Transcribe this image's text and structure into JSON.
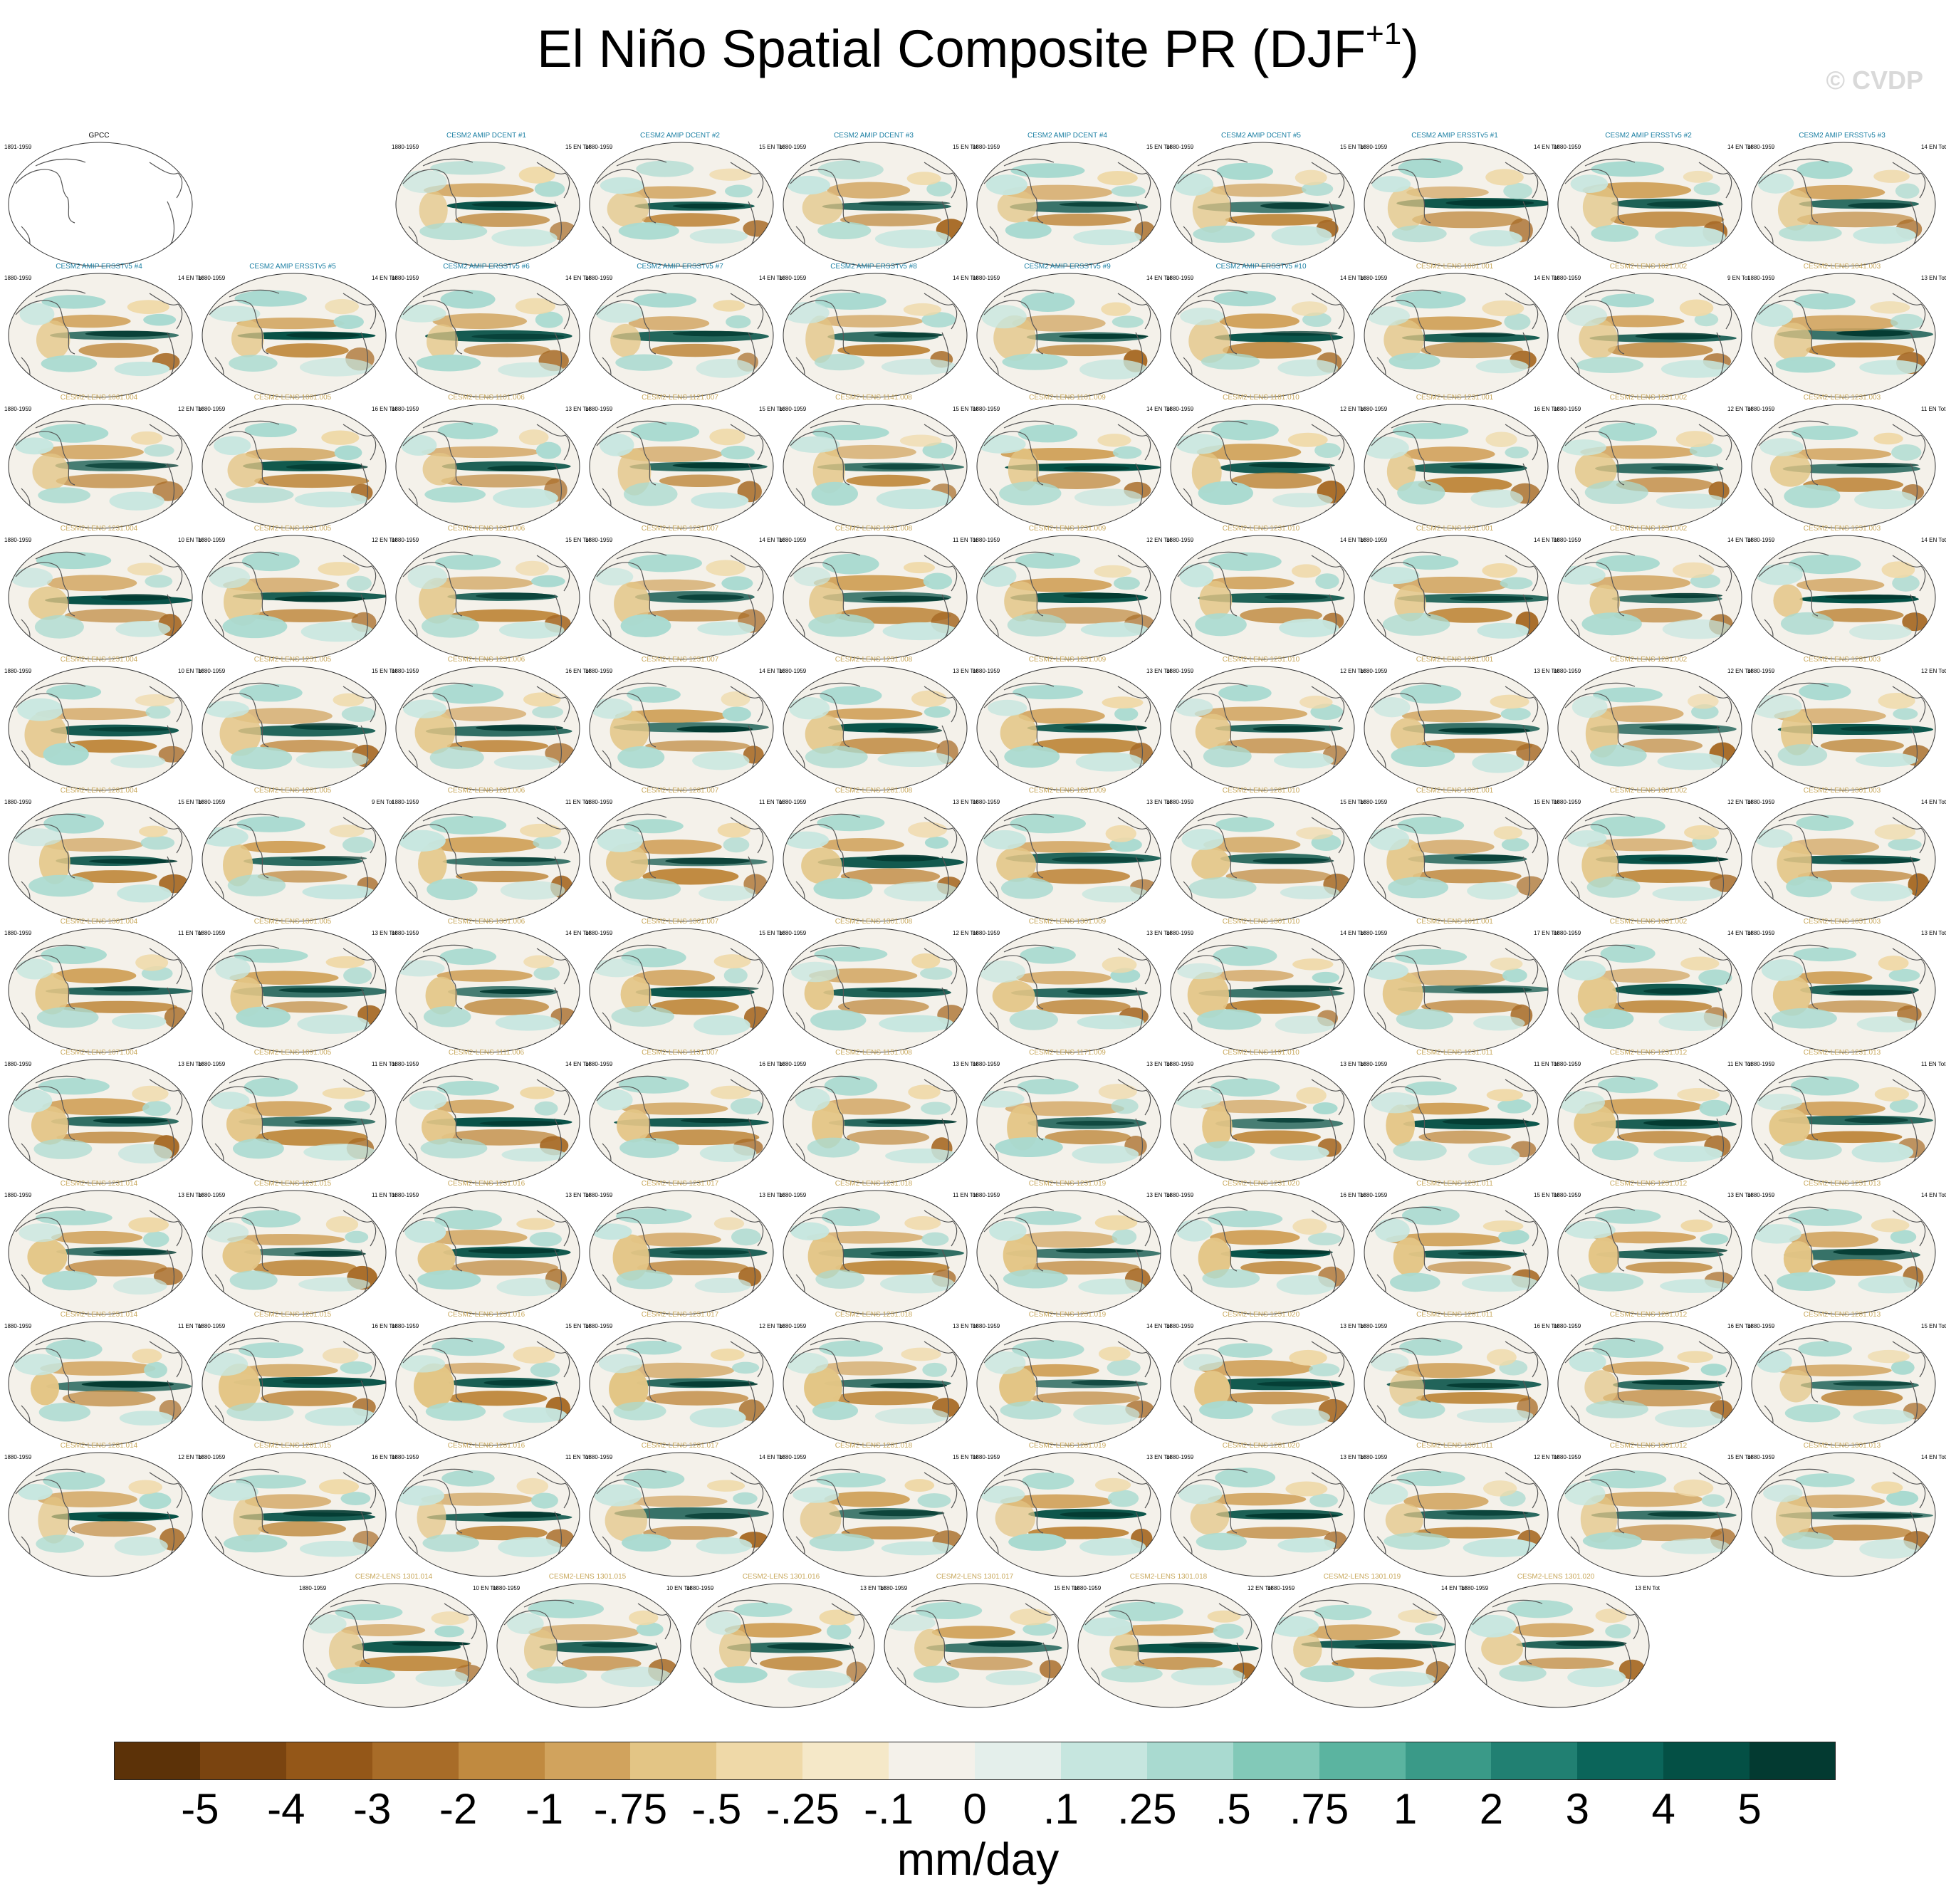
{
  "title": {
    "main": "El Niño Spatial Composite PR (DJF",
    "superscript": "+1",
    "close": ")"
  },
  "watermark": "© CVDP",
  "colors": {
    "obs_title": "#000000",
    "amip_title": "#1b7fa3",
    "lens_title": "#c8a85c"
  },
  "panels": [
    {
      "title": "GPCC",
      "period": "1891-1959",
      "count": "",
      "kind": "obs"
    },
    {
      "title": "CESM2 AMIP DCENT #1",
      "period": "1880-1959",
      "count": "15 EN Tot",
      "kind": "amip"
    },
    {
      "title": "CESM2 AMIP DCENT #2",
      "period": "1880-1959",
      "count": "15 EN Tot",
      "kind": "amip"
    },
    {
      "title": "CESM2 AMIP DCENT #3",
      "period": "1880-1959",
      "count": "15 EN Tot",
      "kind": "amip"
    },
    {
      "title": "CESM2 AMIP DCENT #4",
      "period": "1880-1959",
      "count": "15 EN Tot",
      "kind": "amip"
    },
    {
      "title": "CESM2 AMIP DCENT #5",
      "period": "1880-1959",
      "count": "15 EN Tot",
      "kind": "amip"
    },
    {
      "title": "CESM2 AMIP ERSSTv5 #1",
      "period": "1880-1959",
      "count": "14 EN Tot",
      "kind": "amip"
    },
    {
      "title": "CESM2 AMIP ERSSTv5 #2",
      "period": "1880-1959",
      "count": "14 EN Tot",
      "kind": "amip"
    },
    {
      "title": "CESM2 AMIP ERSSTv5 #3",
      "period": "1880-1959",
      "count": "14 EN Tot",
      "kind": "amip"
    },
    {
      "title": "CESM2 AMIP ERSSTv5 #4",
      "period": "1880-1959",
      "count": "14 EN Tot",
      "kind": "amip"
    },
    {
      "title": "CESM2 AMIP ERSSTv5 #5",
      "period": "1880-1959",
      "count": "14 EN Tot",
      "kind": "amip"
    },
    {
      "title": "CESM2 AMIP ERSSTv5 #6",
      "period": "1880-1959",
      "count": "14 EN Tot",
      "kind": "amip"
    },
    {
      "title": "CESM2 AMIP ERSSTv5 #7",
      "period": "1880-1959",
      "count": "14 EN Tot",
      "kind": "amip"
    },
    {
      "title": "CESM2 AMIP ERSSTv5 #8",
      "period": "1880-1959",
      "count": "14 EN Tot",
      "kind": "amip"
    },
    {
      "title": "CESM2 AMIP ERSSTv5 #9",
      "period": "1880-1959",
      "count": "14 EN Tot",
      "kind": "amip"
    },
    {
      "title": "CESM2 AMIP ERSSTv5 #10",
      "period": "1880-1959",
      "count": "14 EN Tot",
      "kind": "amip"
    },
    {
      "title": "CESM2-LENS 1001.001",
      "period": "1880-1959",
      "count": "14 EN Tot",
      "kind": "lens"
    },
    {
      "title": "CESM2-LENS 1021.002",
      "period": "1880-1959",
      "count": "9 EN Tot",
      "kind": "lens"
    },
    {
      "title": "CESM2-LENS 1041.003",
      "period": "1880-1959",
      "count": "13 EN Tot",
      "kind": "lens"
    },
    {
      "title": "CESM2-LENS 1061.004",
      "period": "1880-1959",
      "count": "12 EN Tot",
      "kind": "lens"
    },
    {
      "title": "CESM2-LENS 1081.005",
      "period": "1880-1959",
      "count": "16 EN Tot",
      "kind": "lens"
    },
    {
      "title": "CESM2-LENS 1101.006",
      "period": "1880-1959",
      "count": "13 EN Tot",
      "kind": "lens"
    },
    {
      "title": "CESM2-LENS 1121.007",
      "period": "1880-1959",
      "count": "15 EN Tot",
      "kind": "lens"
    },
    {
      "title": "CESM2-LENS 1141.008",
      "period": "1880-1959",
      "count": "15 EN Tot",
      "kind": "lens"
    },
    {
      "title": "CESM2-LENS 1161.009",
      "period": "1880-1959",
      "count": "14 EN Tot",
      "kind": "lens"
    },
    {
      "title": "CESM2-LENS 1181.010",
      "period": "1880-1959",
      "count": "12 EN Tot",
      "kind": "lens"
    },
    {
      "title": "CESM2-LENS 1231.001",
      "period": "1880-1959",
      "count": "16 EN Tot",
      "kind": "lens"
    },
    {
      "title": "CESM2-LENS 1231.002",
      "period": "1880-1959",
      "count": "12 EN Tot",
      "kind": "lens"
    },
    {
      "title": "CESM2-LENS 1231.003",
      "period": "1880-1959",
      "count": "11 EN Tot",
      "kind": "lens"
    },
    {
      "title": "CESM2-LENS 1231.004",
      "period": "1880-1959",
      "count": "10 EN Tot",
      "kind": "lens"
    },
    {
      "title": "CESM2-LENS 1231.005",
      "period": "1880-1959",
      "count": "12 EN Tot",
      "kind": "lens"
    },
    {
      "title": "CESM2-LENS 1231.006",
      "period": "1880-1959",
      "count": "15 EN Tot",
      "kind": "lens"
    },
    {
      "title": "CESM2-LENS 1231.007",
      "period": "1880-1959",
      "count": "14 EN Tot",
      "kind": "lens"
    },
    {
      "title": "CESM2-LENS 1231.008",
      "period": "1880-1959",
      "count": "11 EN Tot",
      "kind": "lens"
    },
    {
      "title": "CESM2-LENS 1231.009",
      "period": "1880-1959",
      "count": "12 EN Tot",
      "kind": "lens"
    },
    {
      "title": "CESM2-LENS 1231.010",
      "period": "1880-1959",
      "count": "14 EN Tot",
      "kind": "lens"
    },
    {
      "title": "CESM2-LENS 1251.001",
      "period": "1880-1959",
      "count": "14 EN Tot",
      "kind": "lens"
    },
    {
      "title": "CESM2-LENS 1251.002",
      "period": "1880-1959",
      "count": "14 EN Tot",
      "kind": "lens"
    },
    {
      "title": "CESM2-LENS 1251.003",
      "period": "1880-1959",
      "count": "14 EN Tot",
      "kind": "lens"
    },
    {
      "title": "CESM2-LENS 1251.004",
      "period": "1880-1959",
      "count": "10 EN Tot",
      "kind": "lens"
    },
    {
      "title": "CESM2-LENS 1251.005",
      "period": "1880-1959",
      "count": "15 EN Tot",
      "kind": "lens"
    },
    {
      "title": "CESM2-LENS 1251.006",
      "period": "1880-1959",
      "count": "16 EN Tot",
      "kind": "lens"
    },
    {
      "title": "CESM2-LENS 1251.007",
      "period": "1880-1959",
      "count": "14 EN Tot",
      "kind": "lens"
    },
    {
      "title": "CESM2-LENS 1251.008",
      "period": "1880-1959",
      "count": "13 EN Tot",
      "kind": "lens"
    },
    {
      "title": "CESM2-LENS 1251.009",
      "period": "1880-1959",
      "count": "13 EN Tot",
      "kind": "lens"
    },
    {
      "title": "CESM2-LENS 1251.010",
      "period": "1880-1959",
      "count": "12 EN Tot",
      "kind": "lens"
    },
    {
      "title": "CESM2-LENS 1281.001",
      "period": "1880-1959",
      "count": "13 EN Tot",
      "kind": "lens"
    },
    {
      "title": "CESM2-LENS 1281.002",
      "period": "1880-1959",
      "count": "12 EN Tot",
      "kind": "lens"
    },
    {
      "title": "CESM2-LENS 1281.003",
      "period": "1880-1959",
      "count": "12 EN Tot",
      "kind": "lens"
    },
    {
      "title": "CESM2-LENS 1281.004",
      "period": "1880-1959",
      "count": "15 EN Tot",
      "kind": "lens"
    },
    {
      "title": "CESM2-LENS 1281.005",
      "period": "1880-1959",
      "count": "9 EN Tot",
      "kind": "lens"
    },
    {
      "title": "CESM2-LENS 1281.006",
      "period": "1880-1959",
      "count": "11 EN Tot",
      "kind": "lens"
    },
    {
      "title": "CESM2-LENS 1281.007",
      "period": "1880-1959",
      "count": "11 EN Tot",
      "kind": "lens"
    },
    {
      "title": "CESM2-LENS 1281.008",
      "period": "1880-1959",
      "count": "13 EN Tot",
      "kind": "lens"
    },
    {
      "title": "CESM2-LENS 1281.009",
      "period": "1880-1959",
      "count": "13 EN Tot",
      "kind": "lens"
    },
    {
      "title": "CESM2-LENS 1281.010",
      "period": "1880-1959",
      "count": "15 EN Tot",
      "kind": "lens"
    },
    {
      "title": "CESM2-LENS 1301.001",
      "period": "1880-1959",
      "count": "15 EN Tot",
      "kind": "lens"
    },
    {
      "title": "CESM2-LENS 1301.002",
      "period": "1880-1959",
      "count": "12 EN Tot",
      "kind": "lens"
    },
    {
      "title": "CESM2-LENS 1301.003",
      "period": "1880-1959",
      "count": "14 EN Tot",
      "kind": "lens"
    },
    {
      "title": "CESM2-LENS 1301.004",
      "period": "1880-1959",
      "count": "11 EN Tot",
      "kind": "lens"
    },
    {
      "title": "CESM2-LENS 1301.005",
      "period": "1880-1959",
      "count": "13 EN Tot",
      "kind": "lens"
    },
    {
      "title": "CESM2-LENS 1301.006",
      "period": "1880-1959",
      "count": "14 EN Tot",
      "kind": "lens"
    },
    {
      "title": "CESM2-LENS 1301.007",
      "period": "1880-1959",
      "count": "15 EN Tot",
      "kind": "lens"
    },
    {
      "title": "CESM2-LENS 1301.008",
      "period": "1880-1959",
      "count": "12 EN Tot",
      "kind": "lens"
    },
    {
      "title": "CESM2-LENS 1301.009",
      "period": "1880-1959",
      "count": "13 EN Tot",
      "kind": "lens"
    },
    {
      "title": "CESM2-LENS 1301.010",
      "period": "1880-1959",
      "count": "14 EN Tot",
      "kind": "lens"
    },
    {
      "title": "CESM2-LENS 1011.001",
      "period": "1880-1959",
      "count": "17 EN Tot",
      "kind": "lens"
    },
    {
      "title": "CESM2-LENS 1031.002",
      "period": "1880-1959",
      "count": "14 EN Tot",
      "kind": "lens"
    },
    {
      "title": "CESM2-LENS 1051.003",
      "period": "1880-1959",
      "count": "13 EN Tot",
      "kind": "lens"
    },
    {
      "title": "CESM2-LENS 1071.004",
      "period": "1880-1959",
      "count": "13 EN Tot",
      "kind": "lens"
    },
    {
      "title": "CESM2-LENS 1091.005",
      "period": "1880-1959",
      "count": "11 EN Tot",
      "kind": "lens"
    },
    {
      "title": "CESM2-LENS 1111.006",
      "period": "1880-1959",
      "count": "14 EN Tot",
      "kind": "lens"
    },
    {
      "title": "CESM2-LENS 1131.007",
      "period": "1880-1959",
      "count": "16 EN Tot",
      "kind": "lens"
    },
    {
      "title": "CESM2-LENS 1151.008",
      "period": "1880-1959",
      "count": "13 EN Tot",
      "kind": "lens"
    },
    {
      "title": "CESM2-LENS 1171.009",
      "period": "1880-1959",
      "count": "13 EN Tot",
      "kind": "lens"
    },
    {
      "title": "CESM2-LENS 1191.010",
      "period": "1880-1959",
      "count": "13 EN Tot",
      "kind": "lens"
    },
    {
      "title": "CESM2-LENS 1231.011",
      "period": "1880-1959",
      "count": "11 EN Tot",
      "kind": "lens"
    },
    {
      "title": "CESM2-LENS 1231.012",
      "period": "1880-1959",
      "count": "11 EN Tot",
      "kind": "lens"
    },
    {
      "title": "CESM2-LENS 1231.013",
      "period": "1880-1959",
      "count": "11 EN Tot",
      "kind": "lens"
    },
    {
      "title": "CESM2-LENS 1231.014",
      "period": "1880-1959",
      "count": "13 EN Tot",
      "kind": "lens"
    },
    {
      "title": "CESM2-LENS 1231.015",
      "period": "1880-1959",
      "count": "11 EN Tot",
      "kind": "lens"
    },
    {
      "title": "CESM2-LENS 1231.016",
      "period": "1880-1959",
      "count": "13 EN Tot",
      "kind": "lens"
    },
    {
      "title": "CESM2-LENS 1231.017",
      "period": "1880-1959",
      "count": "13 EN Tot",
      "kind": "lens"
    },
    {
      "title": "CESM2-LENS 1231.018",
      "period": "1880-1959",
      "count": "11 EN Tot",
      "kind": "lens"
    },
    {
      "title": "CESM2-LENS 1231.019",
      "period": "1880-1959",
      "count": "13 EN Tot",
      "kind": "lens"
    },
    {
      "title": "CESM2-LENS 1231.020",
      "period": "1880-1959",
      "count": "16 EN Tot",
      "kind": "lens"
    },
    {
      "title": "CESM2-LENS 1251.011",
      "period": "1880-1959",
      "count": "15 EN Tot",
      "kind": "lens"
    },
    {
      "title": "CESM2-LENS 1251.012",
      "period": "1880-1959",
      "count": "13 EN Tot",
      "kind": "lens"
    },
    {
      "title": "CESM2-LENS 1251.013",
      "period": "1880-1959",
      "count": "14 EN Tot",
      "kind": "lens"
    },
    {
      "title": "CESM2-LENS 1251.014",
      "period": "1880-1959",
      "count": "11 EN Tot",
      "kind": "lens"
    },
    {
      "title": "CESM2-LENS 1251.015",
      "period": "1880-1959",
      "count": "16 EN Tot",
      "kind": "lens"
    },
    {
      "title": "CESM2-LENS 1251.016",
      "period": "1880-1959",
      "count": "15 EN Tot",
      "kind": "lens"
    },
    {
      "title": "CESM2-LENS 1251.017",
      "period": "1880-1959",
      "count": "12 EN Tot",
      "kind": "lens"
    },
    {
      "title": "CESM2-LENS 1251.018",
      "period": "1880-1959",
      "count": "13 EN Tot",
      "kind": "lens"
    },
    {
      "title": "CESM2-LENS 1251.019",
      "period": "1880-1959",
      "count": "14 EN Tot",
      "kind": "lens"
    },
    {
      "title": "CESM2-LENS 1251.020",
      "period": "1880-1959",
      "count": "13 EN Tot",
      "kind": "lens"
    },
    {
      "title": "CESM2-LENS 1281.011",
      "period": "1880-1959",
      "count": "16 EN Tot",
      "kind": "lens"
    },
    {
      "title": "CESM2-LENS 1281.012",
      "period": "1880-1959",
      "count": "16 EN Tot",
      "kind": "lens"
    },
    {
      "title": "CESM2-LENS 1281.013",
      "period": "1880-1959",
      "count": "15 EN Tot",
      "kind": "lens"
    },
    {
      "title": "CESM2-LENS 1281.014",
      "period": "1880-1959",
      "count": "12 EN Tot",
      "kind": "lens"
    },
    {
      "title": "CESM2-LENS 1281.015",
      "period": "1880-1959",
      "count": "16 EN Tot",
      "kind": "lens"
    },
    {
      "title": "CESM2-LENS 1281.016",
      "period": "1880-1959",
      "count": "11 EN Tot",
      "kind": "lens"
    },
    {
      "title": "CESM2-LENS 1281.017",
      "period": "1880-1959",
      "count": "14 EN Tot",
      "kind": "lens"
    },
    {
      "title": "CESM2-LENS 1281.018",
      "period": "1880-1959",
      "count": "15 EN Tot",
      "kind": "lens"
    },
    {
      "title": "CESM2-LENS 1281.019",
      "period": "1880-1959",
      "count": "13 EN Tot",
      "kind": "lens"
    },
    {
      "title": "CESM2-LENS 1281.020",
      "period": "1880-1959",
      "count": "13 EN Tot",
      "kind": "lens"
    },
    {
      "title": "CESM2-LENS 1301.011",
      "period": "1880-1959",
      "count": "12 EN Tot",
      "kind": "lens"
    },
    {
      "title": "CESM2-LENS 1301.012",
      "period": "1880-1959",
      "count": "15 EN Tot",
      "kind": "lens"
    },
    {
      "title": "CESM2-LENS 1301.013",
      "period": "1880-1959",
      "count": "14 EN Tot",
      "kind": "lens"
    },
    {
      "title": "CESM2-LENS 1301.014",
      "period": "1880-1959",
      "count": "10 EN Tot",
      "kind": "lens"
    },
    {
      "title": "CESM2-LENS 1301.015",
      "period": "1880-1959",
      "count": "10 EN Tot",
      "kind": "lens"
    },
    {
      "title": "CESM2-LENS 1301.016",
      "period": "1880-1959",
      "count": "13 EN Tot",
      "kind": "lens"
    },
    {
      "title": "CESM2-LENS 1301.017",
      "period": "1880-1959",
      "count": "15 EN Tot",
      "kind": "lens"
    },
    {
      "title": "CESM2-LENS 1301.018",
      "period": "1880-1959",
      "count": "12 EN Tot",
      "kind": "lens"
    },
    {
      "title": "CESM2-LENS 1301.019",
      "period": "1880-1959",
      "count": "14 EN Tot",
      "kind": "lens"
    },
    {
      "title": "CESM2-LENS 1301.020",
      "period": "1880-1959",
      "count": "13 EN Tot",
      "kind": "lens"
    }
  ],
  "colorbar": {
    "units": "mm/day",
    "tick_labels": [
      "-5",
      "-4",
      "-3",
      "-2",
      "-1",
      "-.75",
      "-.5",
      "-.25",
      "-.1",
      "0",
      ".1",
      ".25",
      ".5",
      ".75",
      "1",
      "2",
      "3",
      "4",
      "5"
    ],
    "colors": [
      "#5c3208",
      "#7a4410",
      "#945718",
      "#a86c28",
      "#c08a40",
      "#d1a35d",
      "#e3c585",
      "#efd9a8",
      "#f5e8c8",
      "#f4f1ea",
      "#e4efeb",
      "#c6e6df",
      "#a9dad0",
      "#82c9b8",
      "#5bb4a0",
      "#3a9a88",
      "#218072",
      "#0b655a",
      "#045045",
      "#033a31"
    ]
  }
}
